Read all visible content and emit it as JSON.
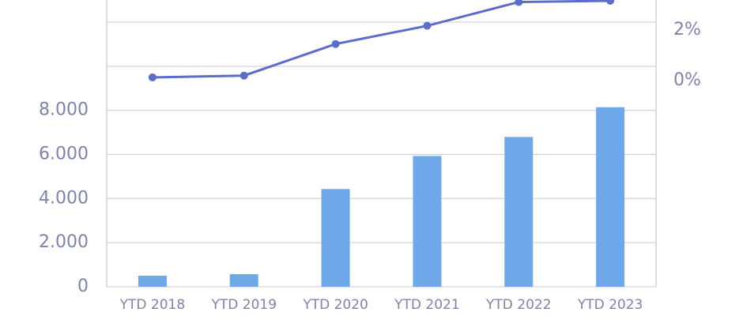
{
  "chart_data": {
    "type": "bar-line",
    "categories": [
      "YTD 2018",
      "YTD 2019",
      "YTD 2020",
      "YTD 2021",
      "YTD 2022",
      "YTD 2023"
    ],
    "series": [
      {
        "type": "bar",
        "color": "#6ea8e8",
        "values": [
          500,
          570,
          4430,
          5930,
          6790,
          8140
        ]
      },
      {
        "type": "line",
        "axis": "y2",
        "color": "#5b6cc9",
        "values": [
          0.12,
          0.19,
          1.44,
          2.16,
          3.1,
          3.15
        ]
      }
    ],
    "ylim": [
      0,
      13000
    ],
    "yticks": [
      {
        "value": 0,
        "label": "0"
      },
      {
        "value": 2000,
        "label": "2.000"
      },
      {
        "value": 4000,
        "label": "4.000"
      },
      {
        "value": 6000,
        "label": "6.000"
      },
      {
        "value": 8000,
        "label": "8.000"
      }
    ],
    "y2lim": [
      -8.16,
      3.18
    ],
    "y2ticks": [
      {
        "value": 0,
        "label": "0%"
      },
      {
        "value": 2,
        "label": "2%"
      }
    ],
    "grid": true
  }
}
